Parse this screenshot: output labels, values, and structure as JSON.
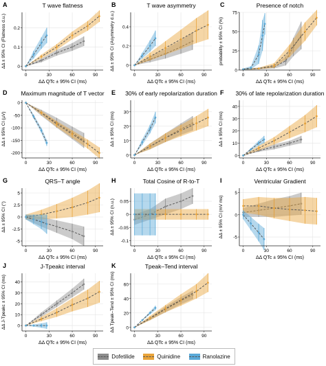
{
  "figure": {
    "xlabel": "ΔΔ QTc ± 95% CI (ms)"
  },
  "colors": {
    "Dofetilide": "#8c8c8c",
    "Quinidine": "#e8a33a",
    "Ranolazine": "#5aa9d8"
  },
  "legend": [
    {
      "name": "Dofetilide",
      "color": "#8c8c8c"
    },
    {
      "name": "Quinidine",
      "color": "#e8a33a"
    },
    {
      "name": "Ranolazine",
      "color": "#5aa9d8"
    }
  ],
  "chart_data": [
    {
      "letter": "A",
      "title": "T wave flatness",
      "type": "line",
      "ylabel": "ΔΔ ± 95% CI (Flatness d.u.)",
      "xlim": [
        -5,
        100
      ],
      "ylim": [
        -0.02,
        0.28
      ],
      "xticks": [
        0,
        30,
        60,
        90
      ],
      "yticks": [
        0.0,
        0.1,
        0.2
      ],
      "series": [
        {
          "name": "Dofetilide",
          "x": [
            0,
            20,
            40,
            60,
            75
          ],
          "y": [
            0.0,
            0.03,
            0.07,
            0.1,
            0.13
          ],
          "ci": [
            0.0,
            0.01,
            0.015,
            0.02,
            0.025
          ]
        },
        {
          "name": "Quinidine",
          "x": [
            0,
            20,
            40,
            60,
            80,
            95
          ],
          "y": [
            0.0,
            0.05,
            0.1,
            0.16,
            0.21,
            0.26
          ],
          "ci": [
            0.0,
            0.01,
            0.015,
            0.02,
            0.025,
            0.03
          ]
        },
        {
          "name": "Ranolazine",
          "x": [
            0,
            10,
            20,
            27
          ],
          "y": [
            0.0,
            0.06,
            0.12,
            0.16
          ],
          "ci": [
            0.0,
            0.02,
            0.03,
            0.04
          ]
        }
      ]
    },
    {
      "letter": "B",
      "title": "T wave asymmetry",
      "type": "line",
      "ylabel": "ΔΔ ± 95% CI (Asymmetry d.u.)",
      "xlim": [
        -5,
        100
      ],
      "ylim": [
        -0.05,
        0.55
      ],
      "xticks": [
        0,
        30,
        60,
        90
      ],
      "yticks": [
        0.0,
        0.2,
        0.4
      ],
      "series": [
        {
          "name": "Dofetilide",
          "x": [
            0,
            20,
            40,
            60,
            75
          ],
          "y": [
            0.0,
            0.06,
            0.12,
            0.19,
            0.25
          ],
          "ci": [
            0.0,
            0.03,
            0.05,
            0.07,
            0.09
          ]
        },
        {
          "name": "Quinidine",
          "x": [
            0,
            20,
            40,
            60,
            80,
            95
          ],
          "y": [
            0.0,
            0.09,
            0.18,
            0.27,
            0.36,
            0.42
          ],
          "ci": [
            0.0,
            0.04,
            0.07,
            0.1,
            0.13,
            0.15
          ]
        },
        {
          "name": "Ranolazine",
          "x": [
            0,
            10,
            20,
            27
          ],
          "y": [
            0.0,
            0.1,
            0.2,
            0.28
          ],
          "ci": [
            0.0,
            0.03,
            0.06,
            0.08
          ]
        }
      ]
    },
    {
      "letter": "C",
      "title": "Presence of notch",
      "type": "line",
      "ylabel": "probability ± 95% CI (%)",
      "xlim": [
        -5,
        100
      ],
      "ylim": [
        0,
        75
      ],
      "xticks": [
        0,
        30,
        60,
        90
      ],
      "yticks": [
        0,
        25,
        50,
        75
      ],
      "series": [
        {
          "name": "Dofetilide",
          "x": [
            0,
            20,
            40,
            55,
            65,
            75
          ],
          "y": [
            1,
            2,
            4,
            12,
            30,
            45
          ],
          "ci": [
            1,
            1,
            2,
            6,
            12,
            18
          ]
        },
        {
          "name": "Quinidine",
          "x": [
            0,
            20,
            40,
            60,
            80,
            95
          ],
          "y": [
            1,
            2,
            6,
            25,
            50,
            68
          ],
          "ci": [
            1,
            1,
            3,
            8,
            12,
            10
          ]
        },
        {
          "name": "Ranolazine",
          "x": [
            0,
            10,
            20,
            25,
            28
          ],
          "y": [
            1,
            3,
            20,
            45,
            60
          ],
          "ci": [
            1,
            2,
            12,
            20,
            14
          ]
        }
      ]
    },
    {
      "letter": "D",
      "title": "Maximum magnitude of T vector",
      "type": "line",
      "ylabel": "ΔΔ ± 95% CI (µV)",
      "xlim": [
        -5,
        100
      ],
      "ylim": [
        -220,
        10
      ],
      "xticks": [
        0,
        30,
        60,
        90
      ],
      "yticks": [
        0,
        -50,
        -100,
        -150,
        -200
      ],
      "series": [
        {
          "name": "Dofetilide",
          "x": [
            0,
            20,
            40,
            60,
            75
          ],
          "y": [
            0,
            -40,
            -80,
            -120,
            -150
          ],
          "ci": [
            0,
            12,
            20,
            25,
            30
          ]
        },
        {
          "name": "Quinidine",
          "x": [
            0,
            20,
            40,
            60,
            80,
            95
          ],
          "y": [
            0,
            -40,
            -85,
            -125,
            -165,
            -200
          ],
          "ci": [
            0,
            8,
            12,
            15,
            18,
            22
          ]
        },
        {
          "name": "Ranolazine",
          "x": [
            0,
            10,
            20,
            27
          ],
          "y": [
            0,
            -55,
            -110,
            -160
          ],
          "ci": [
            0,
            8,
            10,
            12
          ]
        }
      ]
    },
    {
      "letter": "E",
      "title": "30% of early repolarization duration",
      "type": "line",
      "ylabel": "ΔΔ ± 95% CI (ms)",
      "xlim": [
        -5,
        100
      ],
      "ylim": [
        -2,
        38
      ],
      "xticks": [
        0,
        30,
        60,
        90
      ],
      "yticks": [
        0,
        10,
        20,
        30
      ],
      "series": [
        {
          "name": "Dofetilide",
          "x": [
            0,
            20,
            40,
            60,
            75
          ],
          "y": [
            0,
            6,
            12,
            18,
            22
          ],
          "ci": [
            0,
            2,
            3,
            4,
            5
          ]
        },
        {
          "name": "Quinidine",
          "x": [
            0,
            20,
            40,
            60,
            80,
            95
          ],
          "y": [
            0,
            6,
            12,
            17,
            22,
            26
          ],
          "ci": [
            0,
            2,
            3,
            4,
            5,
            6
          ]
        },
        {
          "name": "Ranolazine",
          "x": [
            0,
            10,
            20,
            27
          ],
          "y": [
            0,
            9,
            18,
            26
          ],
          "ci": [
            0,
            2,
            3,
            4
          ]
        }
      ]
    },
    {
      "letter": "F",
      "title": "30% of late repolarization duration",
      "type": "line",
      "ylabel": "ΔΔ ± 95% CI (ms)",
      "xlim": [
        -5,
        100
      ],
      "ylim": [
        -2,
        45
      ],
      "xticks": [
        0,
        30,
        60,
        90
      ],
      "yticks": [
        0,
        10,
        20,
        30,
        40
      ],
      "series": [
        {
          "name": "Dofetilide",
          "x": [
            0,
            20,
            40,
            60,
            75
          ],
          "y": [
            0,
            4,
            7,
            10,
            13
          ],
          "ci": [
            0,
            1,
            2,
            2,
            3
          ]
        },
        {
          "name": "Quinidine",
          "x": [
            0,
            20,
            40,
            60,
            80,
            95
          ],
          "y": [
            0,
            6,
            12,
            19,
            26,
            32
          ],
          "ci": [
            0,
            2,
            3,
            5,
            7,
            9
          ]
        },
        {
          "name": "Ranolazine",
          "x": [
            0,
            10,
            20,
            27
          ],
          "y": [
            0,
            5,
            10,
            13
          ],
          "ci": [
            0,
            1,
            2,
            3
          ]
        }
      ]
    },
    {
      "letter": "G",
      "title": "QRS–T angle",
      "type": "line",
      "ylabel": "ΔΔ ± 95% CI (°)",
      "xlim": [
        -5,
        100
      ],
      "ylim": [
        -6,
        6
      ],
      "xticks": [
        0,
        30,
        60,
        90
      ],
      "yticks": [
        -5.0,
        -2.5,
        0.0,
        2.5,
        5.0
      ],
      "series": [
        {
          "name": "Dofetilide",
          "x": [
            0,
            20,
            40,
            60,
            75
          ],
          "y": [
            0,
            -1,
            -2,
            -3,
            -4
          ],
          "ci": [
            0.5,
            1,
            1.3,
            1.6,
            2
          ]
        },
        {
          "name": "Quinidine",
          "x": [
            0,
            20,
            40,
            60,
            80,
            95
          ],
          "y": [
            0,
            0.5,
            1.2,
            2,
            3,
            4
          ],
          "ci": [
            0.5,
            1,
            1.5,
            2,
            2.5,
            3
          ]
        },
        {
          "name": "Ranolazine",
          "x": [
            0,
            10,
            20,
            27
          ],
          "y": [
            0,
            -0.5,
            -1,
            -1.5
          ],
          "ci": [
            0.5,
            1,
            1.5,
            2
          ]
        }
      ]
    },
    {
      "letter": "H",
      "title": "Total Cosine of R-to-T",
      "type": "line",
      "ylabel": "ΔΔ ± 95% CI (n.u.)",
      "xlim": [
        -5,
        100
      ],
      "ylim": [
        -0.12,
        0.1
      ],
      "xticks": [
        0,
        30,
        60,
        90
      ],
      "yticks": [
        -0.1,
        -0.05,
        0.0,
        0.05
      ],
      "series": [
        {
          "name": "Dofetilide",
          "x": [
            0,
            20,
            40,
            60,
            75
          ],
          "y": [
            -0.02,
            0.0,
            0.03,
            0.05,
            0.07
          ],
          "ci": [
            0.02,
            0.02,
            0.03,
            0.03,
            0.03
          ]
        },
        {
          "name": "Quinidine",
          "x": [
            0,
            20,
            40,
            60,
            80,
            95
          ],
          "y": [
            0.0,
            0.0,
            0.0,
            0.0,
            0.0,
            0.0
          ],
          "ci": [
            0.02,
            0.02,
            0.02,
            0.02,
            0.02,
            0.02
          ]
        },
        {
          "name": "Ranolazine",
          "x": [
            0,
            10,
            20,
            27
          ],
          "y": [
            0.0,
            0.0,
            0.0,
            0.0
          ],
          "ci": [
            0.08,
            0.08,
            0.08,
            0.08
          ]
        }
      ]
    },
    {
      "letter": "I",
      "title": "Ventricular Gradient",
      "type": "line",
      "ylabel": "ΔΔ ± 95% CI (mV ms)",
      "xlim": [
        -5,
        100
      ],
      "ylim": [
        -7,
        6
      ],
      "xticks": [
        0,
        30,
        60,
        90
      ],
      "yticks": [
        -5,
        0,
        5
      ],
      "series": [
        {
          "name": "Dofetilide",
          "x": [
            0,
            20,
            40,
            60,
            75
          ],
          "y": [
            0.5,
            1,
            1.5,
            2,
            2.5
          ],
          "ci": [
            1,
            1.5,
            2,
            2.2,
            2.5
          ]
        },
        {
          "name": "Quinidine",
          "x": [
            0,
            20,
            40,
            60,
            80,
            95
          ],
          "y": [
            2,
            2,
            1.5,
            1.2,
            1,
            0.8
          ],
          "ci": [
            1.5,
            2,
            2.3,
            2.6,
            3,
            3
          ]
        },
        {
          "name": "Ranolazine",
          "x": [
            0,
            10,
            20,
            27
          ],
          "y": [
            0,
            -2,
            -4,
            -5.5
          ],
          "ci": [
            1,
            1.5,
            2,
            2.5
          ]
        }
      ]
    },
    {
      "letter": "J",
      "title": "J-Tpeakc interval",
      "type": "line",
      "ylabel": "ΔΔ J-Tpeakc ± 95% CI (ms)",
      "xlim": [
        -5,
        100
      ],
      "ylim": [
        -5,
        48
      ],
      "xticks": [
        0,
        30,
        60,
        90
      ],
      "yticks": [
        0,
        10,
        20,
        30,
        40
      ],
      "series": [
        {
          "name": "Dofetilide",
          "x": [
            0,
            20,
            40,
            60,
            75
          ],
          "y": [
            0,
            10,
            20,
            30,
            38
          ],
          "ci": [
            0,
            2,
            3,
            4,
            5
          ]
        },
        {
          "name": "Quinidine",
          "x": [
            0,
            20,
            40,
            60,
            80,
            95
          ],
          "y": [
            0,
            6,
            12,
            19,
            25,
            31
          ],
          "ci": [
            0,
            2,
            4,
            6,
            8,
            10
          ]
        },
        {
          "name": "Ranolazine",
          "x": [
            0,
            10,
            20,
            27
          ],
          "y": [
            0,
            0,
            0,
            0
          ],
          "ci": [
            0,
            1,
            2,
            3
          ]
        }
      ]
    },
    {
      "letter": "K",
      "title": "Tpeak–Tend interval",
      "type": "line",
      "ylabel": "ΔΔ Tpeak–Tend ± 95% CI (ms)",
      "xlim": [
        -5,
        100
      ],
      "ylim": [
        -5,
        75
      ],
      "xticks": [
        0,
        30,
        60,
        90
      ],
      "yticks": [
        0,
        20,
        40,
        60
      ],
      "series": [
        {
          "name": "Dofetilide",
          "x": [
            0,
            20,
            40,
            60,
            75
          ],
          "y": [
            0,
            12,
            25,
            37,
            45
          ],
          "ci": [
            0,
            2,
            4,
            5,
            6
          ]
        },
        {
          "name": "Quinidine",
          "x": [
            0,
            20,
            40,
            60,
            80,
            95
          ],
          "y": [
            0,
            13,
            26,
            38,
            50,
            62
          ],
          "ci": [
            0,
            3,
            5,
            8,
            10,
            13
          ]
        },
        {
          "name": "Ranolazine",
          "x": [
            0,
            10,
            20,
            27
          ],
          "y": [
            0,
            10,
            20,
            27
          ],
          "ci": [
            0,
            1,
            2,
            3
          ]
        }
      ]
    }
  ]
}
